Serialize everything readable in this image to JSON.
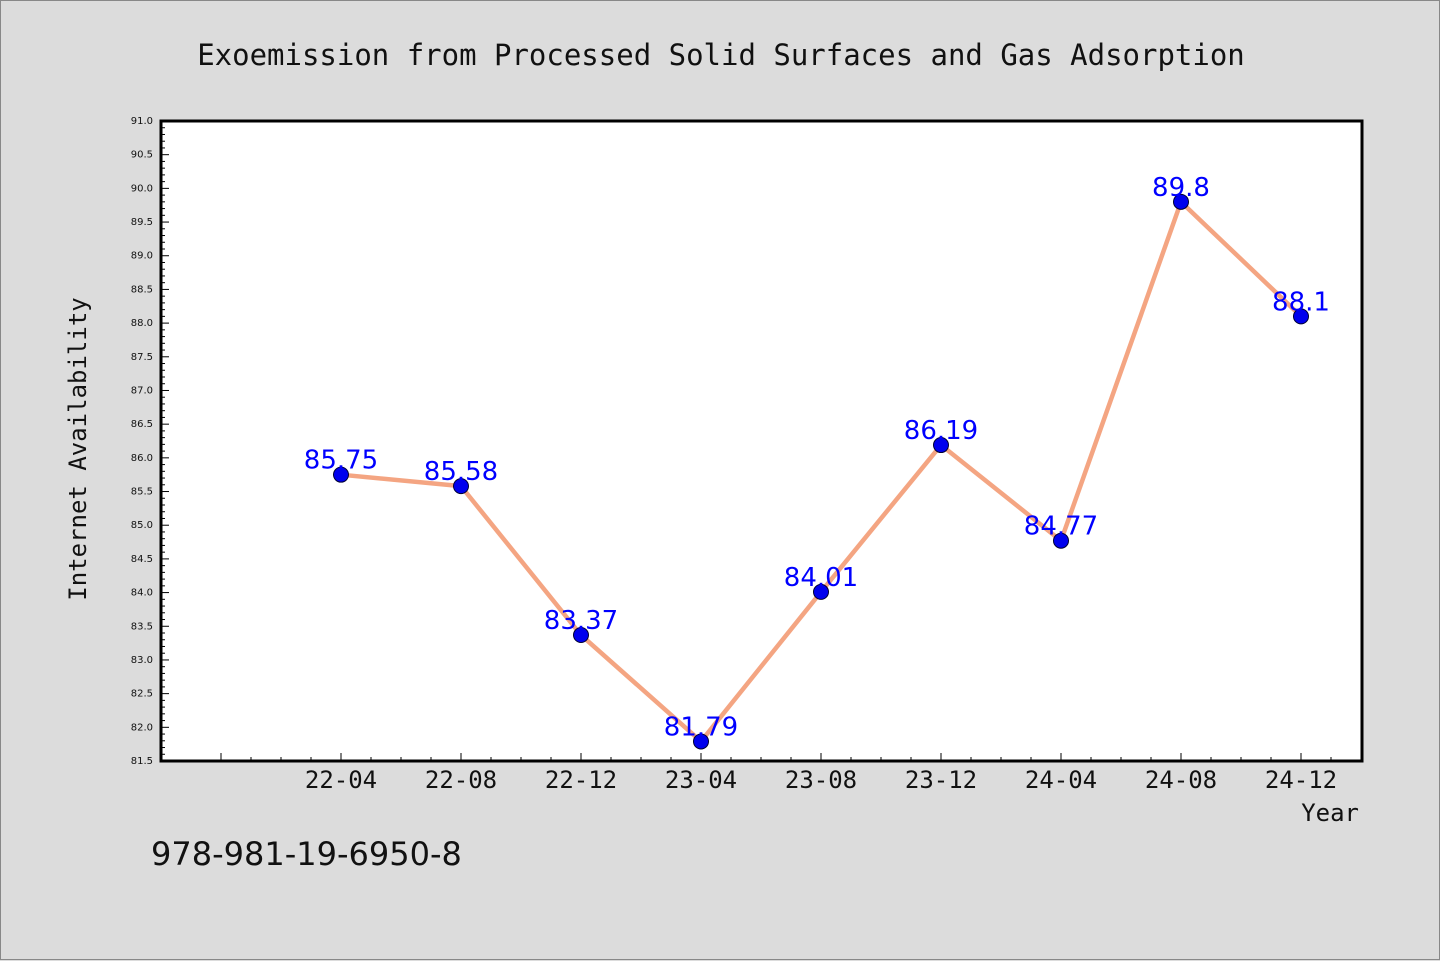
{
  "footer": {
    "isbn": "978-981-19-6950-8"
  },
  "chart_data": {
    "type": "line",
    "title": "Exoemission from Processed Solid Surfaces and Gas Adsorption",
    "xlabel": "Year",
    "ylabel": "Internet Availability",
    "categories": [
      "22-04",
      "22-08",
      "22-12",
      "23-04",
      "23-08",
      "23-12",
      "24-04",
      "24-08",
      "24-12"
    ],
    "values": [
      85.75,
      85.58,
      83.37,
      81.79,
      84.01,
      86.19,
      84.77,
      89.8,
      88.1
    ],
    "data_labels": [
      "85.75",
      "85.58",
      "83.37",
      "81.79",
      "84.01",
      "86.19",
      "84.77",
      "89.8",
      "88.1"
    ],
    "ylim": [
      81.5,
      91.0
    ],
    "y_major_step": 0.5,
    "grid": false,
    "colors": {
      "line": "#f4a582",
      "marker": "#0000ee",
      "label": "#0000ff",
      "plot_bg": "#ffffff",
      "frame": "#000000"
    }
  }
}
